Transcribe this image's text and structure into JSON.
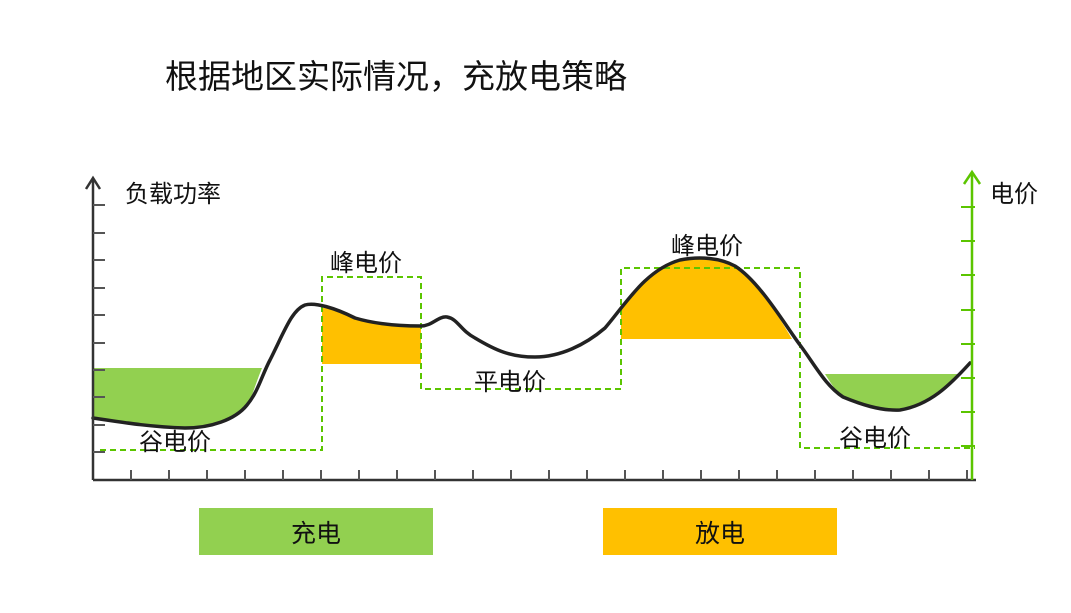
{
  "title": "根据地区实际情况，充放电策略",
  "axes": {
    "left_label": "负载功率",
    "right_label": "电价"
  },
  "price_labels": {
    "valley_left": "谷电价",
    "peak_left": "峰电价",
    "flat": "平电价",
    "peak_right": "峰电价",
    "valley_right": "谷电价"
  },
  "legend": {
    "charge": "充电",
    "discharge": "放电"
  },
  "colors": {
    "charge": "#92d050",
    "discharge": "#ffc000",
    "price_line": "#5bc500",
    "load_curve": "#222222"
  }
}
